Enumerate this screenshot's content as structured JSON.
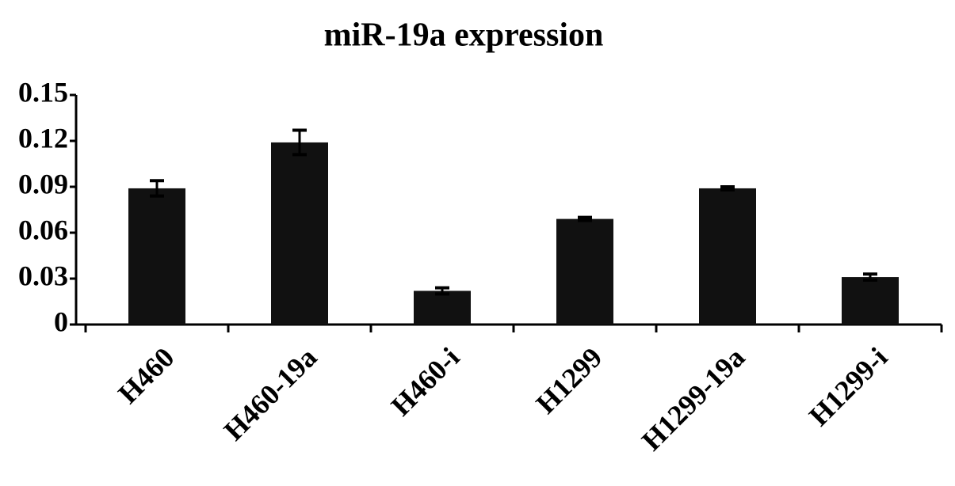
{
  "chart_data": {
    "type": "bar",
    "title": "miR-19a expression",
    "categories": [
      "H460",
      "H460-19a",
      "H460-i",
      "H1299",
      "H1299-19a",
      "H1299-i"
    ],
    "values": [
      0.089,
      0.119,
      0.022,
      0.069,
      0.089,
      0.031
    ],
    "errors": [
      0.005,
      0.008,
      0.002,
      0.001,
      0.001,
      0.002
    ],
    "color": "#111111",
    "ylim": [
      0,
      0.15
    ],
    "yticks": [
      0,
      0.03,
      0.06,
      0.09,
      0.12,
      0.15
    ],
    "grid": false
  }
}
